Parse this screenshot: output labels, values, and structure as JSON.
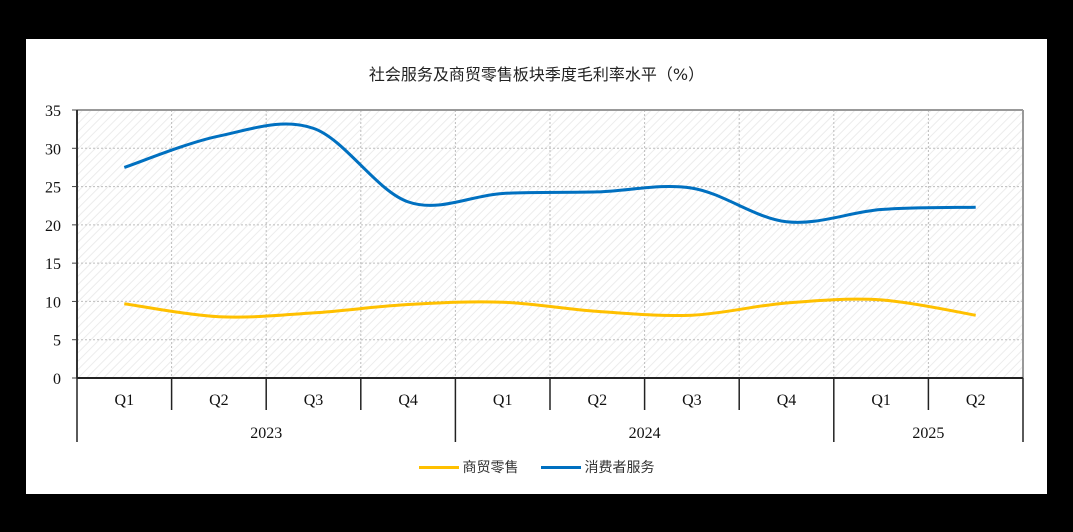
{
  "chart_data": {
    "type": "line",
    "title": "社会服务及商贸零售板块季度毛利率水平（%）",
    "xlabel": "",
    "ylabel": "",
    "ylim": [
      0,
      35
    ],
    "yticks": [
      0,
      5,
      10,
      15,
      20,
      25,
      30,
      35
    ],
    "grid": true,
    "legend_position": "bottom",
    "categories": [
      "Q1",
      "Q2",
      "Q3",
      "Q4",
      "Q1",
      "Q2",
      "Q3",
      "Q4",
      "Q1",
      "Q2"
    ],
    "category_groups": [
      {
        "label": "2023",
        "span": 4
      },
      {
        "label": "2024",
        "span": 4
      },
      {
        "label": "2025",
        "span": 2
      }
    ],
    "series": [
      {
        "name": "商贸零售",
        "color": "#FFC000",
        "values": [
          9.7,
          8.0,
          8.5,
          9.6,
          9.9,
          8.7,
          8.2,
          9.8,
          10.2,
          8.2
        ]
      },
      {
        "name": "消费者服务",
        "color": "#0070C0",
        "values": [
          27.5,
          31.6,
          32.6,
          23.0,
          24.1,
          24.3,
          24.8,
          20.4,
          22.0,
          22.3
        ]
      }
    ]
  },
  "title": "社会服务及商贸零售板块季度毛利率水平（%）",
  "legend": [
    {
      "label": "商贸零售",
      "color": "#FFC000"
    },
    {
      "label": "消费者服务",
      "color": "#0070C0"
    }
  ]
}
